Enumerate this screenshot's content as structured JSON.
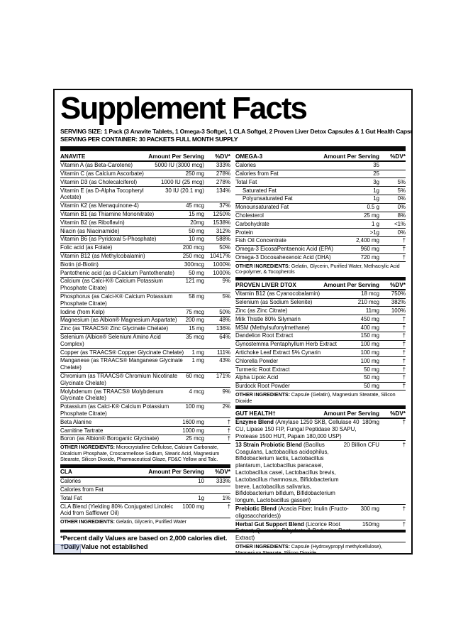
{
  "label": {
    "title": "Supplement Facts",
    "serving_size": "SERVING SIZE:  1 Pack (3 Anavite Tablets, 1 Omega-3 Softgel, 1 CLA Softgel, 2 Proven Liver Detox Capsules & 1 Gut Health Capsule)",
    "serving_per_container": "SERVING PER CONTAINER: 30 PACKETS FULL MONTH SUPPLY",
    "column_headers": {
      "amount": "Amount Per Serving",
      "dv": "%DV*"
    },
    "other_label": "OTHER INGREDIENTS:",
    "footnotes": [
      "*Percent daily Values are based on 2,000 calories diet.",
      "†Daily Value not established"
    ],
    "colors": {
      "ink": "#0a0a0a",
      "paper": "#ffffff"
    }
  },
  "sections": {
    "left": [
      {
        "id": "anavite",
        "title": "ANAVITE",
        "top_bar": false,
        "rows": [
          {
            "name": "Vitamin A (as Beta-Carotene)",
            "amount": "5000 IU (3000 mcg)",
            "dv": "333%"
          },
          {
            "name": "Vitamin C (as Calcium Ascorbate)",
            "amount": "250 mg",
            "dv": "278%"
          },
          {
            "name": "Vitamin D3 (as Cholecalciferol)",
            "amount": "1000 IU (25 mcg)",
            "dv": "278%"
          },
          {
            "name": "Vitamin E (as D-Alpha Tocopheryl Acetate)",
            "amount": "30 IU (20.1 mg)",
            "dv": "134%"
          },
          {
            "name": "Vitamin K2 (as Menaquinone-4)",
            "amount": "45 mcg",
            "dv": "37%"
          },
          {
            "name": "Vitamin B1 (as Thiamine Mononitrate)",
            "amount": "15 mg",
            "dv": "1250%"
          },
          {
            "name": "Vitamin B2 (as Riboflavin)",
            "amount": "20mg",
            "dv": "1538%"
          },
          {
            "name": "Niacin (as Niacinamide)",
            "amount": "50 mg",
            "dv": "312%"
          },
          {
            "name": "Vitamin B6 (as Pyridoxal 5-Phosphate)",
            "amount": "10 mg",
            "dv": "588%"
          },
          {
            "name": "Folic acid (as Folate)",
            "amount": "200 mcg",
            "dv": "50%"
          },
          {
            "name": "Vitamin B12 (as Methylcobalamin)",
            "amount": "250 mcg",
            "dv": "10417%"
          },
          {
            "name": "Biotin (d-Biotin)",
            "amount": "300mcg",
            "dv": "1000%"
          },
          {
            "name": "Pantothenic acid (as d-Calcium Pantothenate)",
            "amount": "50 mg",
            "dv": "1000%"
          },
          {
            "name": "Calcium (as Calci-K® Calcium Potassium Phosphate Citrate)",
            "amount": "121 mg",
            "dv": "9%"
          },
          {
            "name": "Phosphorus (as Calci-K® Calcium Potassium Phosphate Citrate)",
            "amount": "58 mg",
            "dv": "5%"
          },
          {
            "name": "Iodine (from Kelp)",
            "amount": "75 mcg",
            "dv": "50%"
          },
          {
            "name": "Magnesium (as Albion® Magnesium Aspartate)",
            "amount": "200 mg",
            "dv": "48%"
          },
          {
            "name": "Zinc (as TRAACS® Zinc Glycinate Chelate)",
            "amount": "15 mg",
            "dv": "136%"
          },
          {
            "name": "Selenium (Albion® Selenium Amino Acid Complex)",
            "amount": "35 mcg",
            "dv": "64%"
          },
          {
            "name": "Copper (as TRAACS® Copper Glycinate Chelate)",
            "amount": "1 mg",
            "dv": "111%"
          },
          {
            "name": "Manganese (as TRAACS® Manganese Glycinate Chelate)",
            "amount": "1 mg",
            "dv": "43%"
          },
          {
            "name": "Chromium (as TRAACS® Chromium Nicotinate Glycinate Chelate)",
            "amount": "60 mcg",
            "dv": "171%"
          },
          {
            "name": "Molybdenum (as TRAACS® Molybdenum Glycinate Chelate)",
            "amount": "4 mcg",
            "dv": "9%"
          },
          {
            "name": "Potassium (as Calci-K® Calcium Potassium Phosphate Citrate)",
            "amount": "100 mg",
            "dv": "2%"
          },
          {
            "name": "Beta Alanine",
            "amount": "1600 mg",
            "dv": "†"
          },
          {
            "name": "Carnitine Tartrate",
            "amount": "1000 mg",
            "dv": "†"
          },
          {
            "name": "Boron (as Albion® Boroganic Glycinate)",
            "amount": "25 mcg",
            "dv": "†"
          }
        ],
        "other": "Microcrystalline Cellulose, Calcium Carbonate, Dicalcium Phosphate, Croscarmellose Sodium, Stearic Acid, Magnesium Stearate, Silicon Dioxide, Pharmaceutical Glaze, FD&C Yellow and Talc."
      },
      {
        "id": "cla",
        "title": "CLA",
        "top_bar": true,
        "rows": [
          {
            "name": "Calories",
            "amount": "10",
            "dv": "333%"
          },
          {
            "name": "Calories from Fat",
            "amount": "",
            "dv": ""
          },
          {
            "name": "Total Fat",
            "amount": "1g",
            "dv": "1%"
          },
          {
            "name": "CLA Blend (Yielding 80% Conjugated Linoleic Acid from Safflower Oil)",
            "amount": "1000 mg",
            "dv": "†"
          }
        ],
        "other": "Gelatin, Glycerin, Purified Water"
      }
    ],
    "right": [
      {
        "id": "omega3",
        "title": "OMEGA-3",
        "top_bar": false,
        "rows": [
          {
            "name": "Calories",
            "amount": "35",
            "dv": ""
          },
          {
            "name": "Calories from Fat",
            "amount": "25",
            "dv": ""
          },
          {
            "name": "Total Fat",
            "amount": "3g",
            "dv": "5%"
          },
          {
            "name": "Saturated Fat",
            "amount": "1g",
            "dv": "5%",
            "indent": true
          },
          {
            "name": "Polyunsaturated Fat",
            "amount": "1g",
            "dv": "0%",
            "indent": true
          },
          {
            "name": "Monounsaturated Fat",
            "amount": "0.5 g",
            "dv": "0%"
          },
          {
            "name": "Cholesterol",
            "amount": "25 mg",
            "dv": "8%"
          },
          {
            "name": "Carbohydrate",
            "amount": "1 g",
            "dv": "<1%"
          },
          {
            "name": "Protein",
            "amount": ">1g",
            "dv": "0%"
          },
          {
            "name": "Fish Oil Concentrate",
            "amount": "2,400 mg",
            "dv": "†"
          },
          {
            "name": "Omega-3 EicosaPentaenoic Acid (EPA)",
            "amount": "960 mg",
            "dv": "†"
          },
          {
            "name": "Omega-3 Docosahexenoic Acid (DHA)",
            "amount": "720 mg",
            "dv": "†"
          }
        ],
        "other": "Gelatin, Glycerin, Purified Water, Methacrylic Acid Co-polymer, & Tocopherols"
      },
      {
        "id": "liver-dtox",
        "title": "PROVEN LIVER DTOX",
        "top_bar": true,
        "rows": [
          {
            "name": "Vitamin B12 (as Cyanocobalamin)",
            "amount": "18 mcg",
            "dv": "750%"
          },
          {
            "name": "Selenium (as Sodium Selenite)",
            "amount": "210 mcg",
            "dv": "382%"
          },
          {
            "name": "Zinc (as Zinc Citrate)",
            "amount": "11mg",
            "dv": "100%"
          },
          {
            "name": "Milk Thistle 80% Silymarin",
            "amount": "450 mg",
            "dv": "†"
          },
          {
            "name": "MSM (Methylsufonylmethane)",
            "amount": "400 mg",
            "dv": "†"
          },
          {
            "name": "Dandelion Root Extract",
            "amount": "150 mg",
            "dv": "†"
          },
          {
            "name": "Gynostemma Pentaphyllum Herb Extract",
            "amount": "100 mg",
            "dv": "†"
          },
          {
            "name": "Artichoke Leaf Extract 5% Cynarin",
            "amount": "100 mg",
            "dv": "†"
          },
          {
            "name": "Chlorella Powder",
            "amount": "100 mg",
            "dv": "†"
          },
          {
            "name": "Turmeric Root Extract",
            "amount": "50 mg",
            "dv": "†"
          },
          {
            "name": "Alpha Lipoic Acid",
            "amount": "50 mg",
            "dv": "†"
          },
          {
            "name": "Burdock Root Powder",
            "amount": "50 mg",
            "dv": "†"
          }
        ],
        "other": "Capsule (Gelatin), Magnesium Stearate, Silicon Dioxide"
      },
      {
        "id": "gut-health",
        "title": "GUT HEALTH†",
        "top_bar": true,
        "rows": [
          {
            "name_bold": "Enzyme Blend",
            "name": " (Amylase 1250 SKB, Cellulase 40 CU, Lipase 150 FIP, Fungal Peptidase 30 SAPU, Protease 1500 HUT, Papain 180,000 USP)",
            "amount": "180mg",
            "dv": "†"
          },
          {
            "name_bold": "13 Strain Probiotic Blend",
            "name": " (Bacillus Coagulans, Lactobacillus acidophilus, Bifidobacterium lactis, Lactobacillus plantarum, Lactobacillus paracasei, Lactobacillus casei, Lactobacillus brevis, Lactobacillus rhamnosus, Bifidobacterium breve, Lactobacillus salivarius, Bifidobacterium bifidum, Bifidobacterium longum, Lactobacillus gasseri)",
            "amount": "20 Billion CFU",
            "dv": "†"
          },
          {
            "name_bold": "Prebiotic Blend",
            "name": " (Acacia Fiber; Inulin (Fructo-oligosaccharides))",
            "amount": "300 mg",
            "dv": "†"
          },
          {
            "name_bold": "Herbal Gut Support Blend",
            "name": " (Licorice Root Extract, Quercetin Dihydrate & Berberine Root Extract)",
            "amount": "150mg",
            "dv": "†"
          }
        ],
        "other": "Capsule (Hydroxypropyl methylcellulose), Magnesium Stearate, Silicon Dioxide"
      }
    ]
  }
}
